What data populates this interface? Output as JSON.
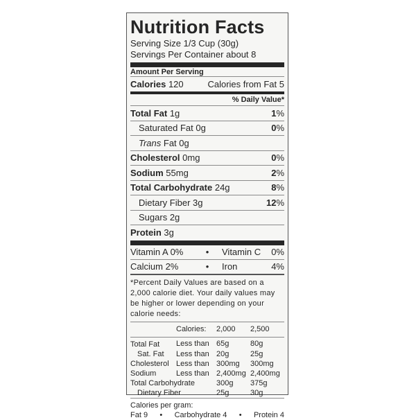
{
  "title": "Nutrition Facts",
  "serving_size": "Serving Size 1/3 Cup (30g)",
  "servings_per": "Servings Per Container about 8",
  "amount_per": "Amount Per Serving",
  "calories": {
    "label": "Calories",
    "value": "120",
    "from_fat": "Calories from Fat 5"
  },
  "dv_header": "% Daily Value*",
  "nutrients": [
    {
      "name": "Total Fat",
      "amount": "1g",
      "dv": "1",
      "bold": true,
      "indent": false
    },
    {
      "name": "Saturated Fat",
      "amount": "0g",
      "dv": "0",
      "bold": false,
      "indent": true
    },
    {
      "name": "Trans",
      "name2": "Fat 0g",
      "amount": "",
      "dv": "",
      "bold": false,
      "indent": true
    },
    {
      "name": "Cholesterol",
      "amount": "0mg",
      "dv": "0",
      "bold": true,
      "indent": false
    },
    {
      "name": "Sodium",
      "amount": "55mg",
      "dv": "2",
      "bold": true,
      "indent": false
    },
    {
      "name": "Total Carbohydrate",
      "amount": "24g",
      "dv": "8",
      "bold": true,
      "indent": false
    },
    {
      "name": "Dietary Fiber",
      "amount": "3g",
      "dv": "12",
      "bold": false,
      "indent": true
    },
    {
      "name": "Sugars",
      "amount": "2g",
      "dv": "",
      "bold": false,
      "indent": true
    },
    {
      "name": "Protein",
      "amount": "3g",
      "dv": "",
      "bold": true,
      "indent": false
    }
  ],
  "percent": "%",
  "bullet": "•",
  "vitamins": [
    [
      "Vitamin A 0%",
      "Vitamin C 0%"
    ],
    [
      "Calcium 2%",
      "Iron 4%"
    ]
  ],
  "footnote": "*Percent Daily Values are based on a 2,000 calorie diet. Your daily values may be higher or lower depending on your calorie needs:",
  "dv_table": {
    "header": [
      "",
      "Calories:",
      "2,000",
      "2,500"
    ],
    "rows": [
      [
        "Total Fat",
        "Less than",
        "65g",
        "80g"
      ],
      [
        "Sat. Fat",
        "Less than",
        "20g",
        "25g"
      ],
      [
        "Cholesterol",
        "Less than",
        "300mg",
        "300mg"
      ],
      [
        "Sodium",
        "Less than",
        "2,400mg",
        "2,400mg"
      ],
      [
        "Total Carbohydrate",
        "",
        "300g",
        "375g"
      ],
      [
        "Dietary Fiber",
        "",
        "25g",
        "30g"
      ]
    ]
  },
  "cal_per_gram": "Calories per gram:",
  "cal_per_gram_items": [
    "Fat 9",
    "Carbohydrate 4",
    "Protein 4"
  ]
}
